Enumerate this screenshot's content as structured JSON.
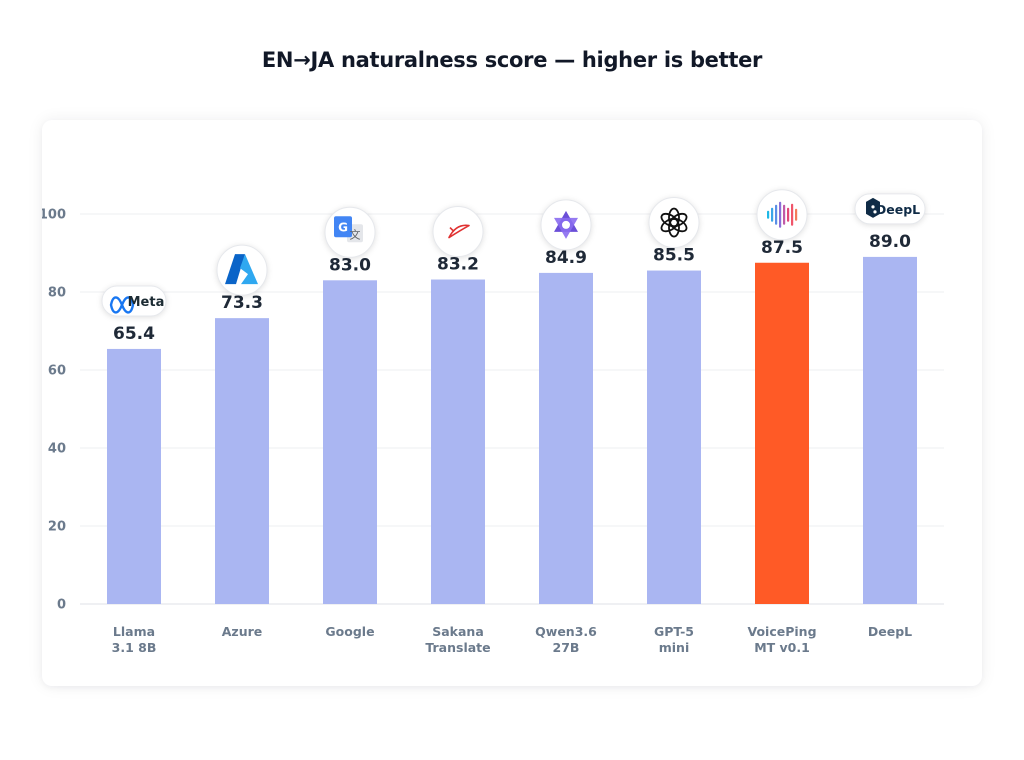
{
  "title": "EN→JA naturalness score — higher is better",
  "colors": {
    "bar": "#aab6f2",
    "highlight": "#ff5a26",
    "grid": "#eeeff2",
    "tick": "#6b7a8c",
    "value": "#1f2937"
  },
  "chart_data": {
    "type": "bar",
    "title": "EN→JA naturalness score — higher is better",
    "xlabel": "",
    "ylabel": "",
    "ylim": [
      0,
      100
    ],
    "yticks": [
      0,
      20,
      40,
      60,
      80,
      100
    ],
    "grid": true,
    "categories": [
      [
        "Llama",
        "3.1 8B"
      ],
      [
        "Azure"
      ],
      [
        "Google"
      ],
      [
        "Sakana",
        "Translate"
      ],
      [
        "Qwen3.6",
        "27B"
      ],
      [
        "GPT-5",
        "mini"
      ],
      [
        "VoicePing",
        "MT v0.1"
      ],
      [
        "DeepL"
      ]
    ],
    "values": [
      65.4,
      73.3,
      83.0,
      83.2,
      84.9,
      85.5,
      87.5,
      89.0
    ],
    "value_labels": [
      "65.4",
      "73.3",
      "83.0",
      "83.2",
      "84.9",
      "85.5",
      "87.5",
      "89.0"
    ],
    "highlight": "VoicePing MT v0.1",
    "logos": [
      {
        "icon": "meta-logo-icon",
        "text": "Meta"
      },
      {
        "icon": "azure-logo-icon"
      },
      {
        "icon": "google-translate-logo-icon"
      },
      {
        "icon": "sakana-logo-icon"
      },
      {
        "icon": "qwen-logo-icon"
      },
      {
        "icon": "openai-logo-icon"
      },
      {
        "icon": "voiceping-logo-icon"
      },
      {
        "icon": "deepl-logo-icon",
        "text": "DeepL"
      }
    ]
  }
}
